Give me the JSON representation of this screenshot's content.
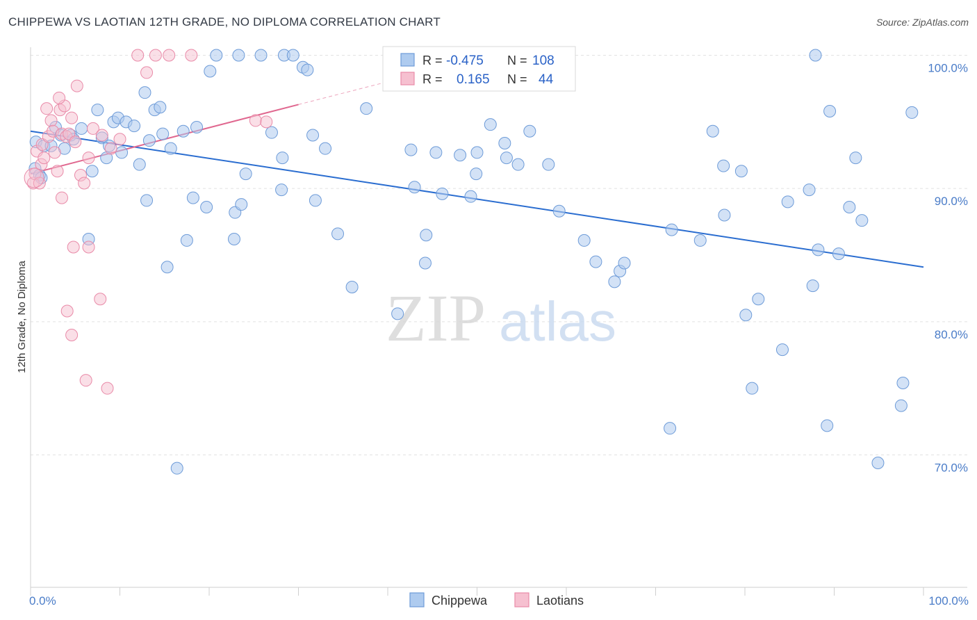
{
  "title": "CHIPPEWA VS LAOTIAN 12TH GRADE, NO DIPLOMA CORRELATION CHART",
  "source": "Source: ZipAtlas.com",
  "watermark": {
    "zip": "ZIP",
    "atlas": "atlas"
  },
  "colors": {
    "chippewa_fill": "#aecbef",
    "chippewa_stroke": "#6d9bd8",
    "chippewa_line": "#2a6dd0",
    "laotian_fill": "#f6c0d0",
    "laotian_stroke": "#e98aa8",
    "laotian_line": "#e0678f",
    "tick_text": "#4a7cc8",
    "grid": "#e2e2e2"
  },
  "chart_data": {
    "type": "scatter",
    "ylabel": "12th Grade, No Diploma",
    "xlim": [
      0,
      100
    ],
    "ylim": [
      59,
      102
    ],
    "y_ticks": [
      {
        "value": 100,
        "label": "100.0%"
      },
      {
        "value": 90,
        "label": "90.0%"
      },
      {
        "value": 80,
        "label": "80.0%"
      },
      {
        "value": 70,
        "label": "70.0%"
      }
    ],
    "x_ticks": [
      {
        "value": 0,
        "label": "0.0%"
      },
      {
        "value": 100,
        "label": "100.0%"
      }
    ],
    "legend": {
      "r_label": "R =",
      "n_label": "N =",
      "entries": [
        {
          "series": "Chippewa",
          "r": "-0.475",
          "n": "108"
        },
        {
          "series": "Laotians",
          "r": "0.165",
          "n": "44"
        }
      ]
    },
    "series": [
      {
        "name": "Chippewa",
        "trend": {
          "x0": 0,
          "y0": 94.3,
          "x1": 100,
          "y1": 84.1
        },
        "points": [
          [
            0.5,
            91.5
          ],
          [
            1.0,
            91.0
          ],
          [
            1.2,
            90.8
          ],
          [
            0.6,
            93.5
          ],
          [
            1.5,
            93.2
          ],
          [
            2.3,
            93.2
          ],
          [
            2.8,
            94.6
          ],
          [
            3.4,
            94.0
          ],
          [
            3.8,
            93.0
          ],
          [
            4.5,
            94.0
          ],
          [
            4.8,
            93.7
          ],
          [
            5.7,
            94.5
          ],
          [
            6.5,
            86.2
          ],
          [
            6.9,
            91.3
          ],
          [
            7.5,
            95.9
          ],
          [
            8.0,
            93.8
          ],
          [
            8.5,
            92.3
          ],
          [
            8.8,
            93.2
          ],
          [
            9.3,
            95.0
          ],
          [
            9.8,
            95.3
          ],
          [
            10.2,
            92.7
          ],
          [
            10.7,
            95.0
          ],
          [
            11.6,
            94.7
          ],
          [
            12.2,
            91.8
          ],
          [
            12.8,
            97.2
          ],
          [
            13.0,
            89.1
          ],
          [
            13.3,
            93.6
          ],
          [
            13.9,
            95.9
          ],
          [
            14.5,
            96.1
          ],
          [
            14.8,
            94.1
          ],
          [
            15.3,
            84.1
          ],
          [
            15.7,
            93.0
          ],
          [
            16.4,
            69.0
          ],
          [
            17.1,
            94.3
          ],
          [
            17.5,
            86.1
          ],
          [
            18.2,
            89.3
          ],
          [
            18.6,
            94.6
          ],
          [
            19.7,
            88.6
          ],
          [
            20.1,
            98.8
          ],
          [
            20.8,
            100.0
          ],
          [
            22.8,
            86.2
          ],
          [
            22.9,
            88.2
          ],
          [
            23.3,
            100.0
          ],
          [
            23.6,
            88.8
          ],
          [
            24.1,
            91.1
          ],
          [
            25.8,
            100.0
          ],
          [
            27.0,
            94.2
          ],
          [
            28.1,
            89.9
          ],
          [
            28.2,
            92.3
          ],
          [
            28.4,
            100.0
          ],
          [
            29.4,
            100.0
          ],
          [
            30.5,
            99.1
          ],
          [
            31.0,
            98.9
          ],
          [
            31.6,
            94.0
          ],
          [
            31.9,
            89.1
          ],
          [
            33.0,
            93.0
          ],
          [
            34.4,
            86.6
          ],
          [
            36.0,
            82.6
          ],
          [
            37.6,
            96.0
          ],
          [
            41.1,
            80.6
          ],
          [
            42.6,
            92.9
          ],
          [
            43.0,
            90.1
          ],
          [
            44.2,
            84.4
          ],
          [
            44.3,
            86.5
          ],
          [
            45.4,
            92.7
          ],
          [
            46.1,
            89.6
          ],
          [
            48.1,
            92.5
          ],
          [
            49.3,
            89.4
          ],
          [
            49.9,
            91.1
          ],
          [
            50.0,
            92.7
          ],
          [
            51.5,
            94.8
          ],
          [
            53.1,
            93.4
          ],
          [
            53.3,
            92.3
          ],
          [
            54.6,
            91.8
          ],
          [
            55.9,
            94.3
          ],
          [
            58.0,
            91.8
          ],
          [
            59.2,
            88.3
          ],
          [
            62.0,
            86.1
          ],
          [
            63.3,
            84.5
          ],
          [
            65.4,
            83.0
          ],
          [
            66.0,
            83.8
          ],
          [
            66.5,
            84.4
          ],
          [
            71.8,
            86.9
          ],
          [
            75.0,
            86.1
          ],
          [
            76.4,
            94.3
          ],
          [
            77.6,
            91.7
          ],
          [
            77.7,
            88.0
          ],
          [
            79.6,
            91.3
          ],
          [
            80.1,
            80.5
          ],
          [
            80.8,
            75.0
          ],
          [
            81.5,
            81.7
          ],
          [
            84.2,
            77.9
          ],
          [
            84.8,
            89.0
          ],
          [
            87.2,
            89.9
          ],
          [
            87.6,
            82.7
          ],
          [
            87.9,
            100.0
          ],
          [
            88.2,
            85.4
          ],
          [
            89.2,
            72.2
          ],
          [
            89.5,
            95.8
          ],
          [
            90.5,
            85.1
          ],
          [
            91.7,
            88.6
          ],
          [
            92.4,
            92.3
          ],
          [
            93.1,
            87.6
          ],
          [
            94.9,
            69.4
          ],
          [
            97.5,
            73.7
          ],
          [
            97.7,
            75.4
          ],
          [
            98.7,
            95.7
          ],
          [
            71.6,
            72.0
          ]
        ]
      },
      {
        "name": "Laotians",
        "trend": {
          "x0": 0,
          "y0": 91.1,
          "x1": 30,
          "y1": 96.3
        },
        "trend_extension": {
          "x0": 30,
          "y0": 96.3,
          "x1": 44,
          "y1": 98.7
        },
        "points": [
          [
            0.3,
            90.4
          ],
          [
            0.5,
            91.1
          ],
          [
            0.7,
            92.8
          ],
          [
            1.0,
            90.4
          ],
          [
            1.2,
            91.8
          ],
          [
            1.3,
            93.3
          ],
          [
            1.5,
            92.3
          ],
          [
            1.8,
            96.0
          ],
          [
            2.0,
            93.9
          ],
          [
            2.3,
            95.1
          ],
          [
            2.5,
            94.3
          ],
          [
            2.7,
            92.7
          ],
          [
            3.0,
            91.3
          ],
          [
            3.3,
            95.9
          ],
          [
            3.5,
            94.1
          ],
          [
            3.8,
            96.2
          ],
          [
            4.0,
            93.9
          ],
          [
            4.3,
            94.1
          ],
          [
            4.6,
            95.3
          ],
          [
            5.0,
            93.5
          ],
          [
            5.2,
            97.7
          ],
          [
            5.6,
            91.0
          ],
          [
            6.0,
            90.4
          ],
          [
            6.5,
            92.3
          ],
          [
            7.0,
            94.5
          ],
          [
            8.0,
            94.0
          ],
          [
            9.0,
            93.0
          ],
          [
            10.0,
            93.7
          ],
          [
            12.0,
            100.0
          ],
          [
            13.0,
            98.7
          ],
          [
            14.0,
            100.0
          ],
          [
            15.5,
            100.0
          ],
          [
            3.5,
            89.3
          ],
          [
            4.8,
            85.6
          ],
          [
            6.5,
            85.6
          ],
          [
            7.8,
            81.7
          ],
          [
            8.6,
            75.0
          ],
          [
            4.1,
            80.8
          ],
          [
            4.6,
            79.0
          ],
          [
            6.2,
            75.6
          ],
          [
            18.0,
            100.0
          ],
          [
            25.2,
            95.1
          ],
          [
            26.4,
            95.0
          ],
          [
            3.2,
            96.8
          ]
        ]
      }
    ]
  }
}
